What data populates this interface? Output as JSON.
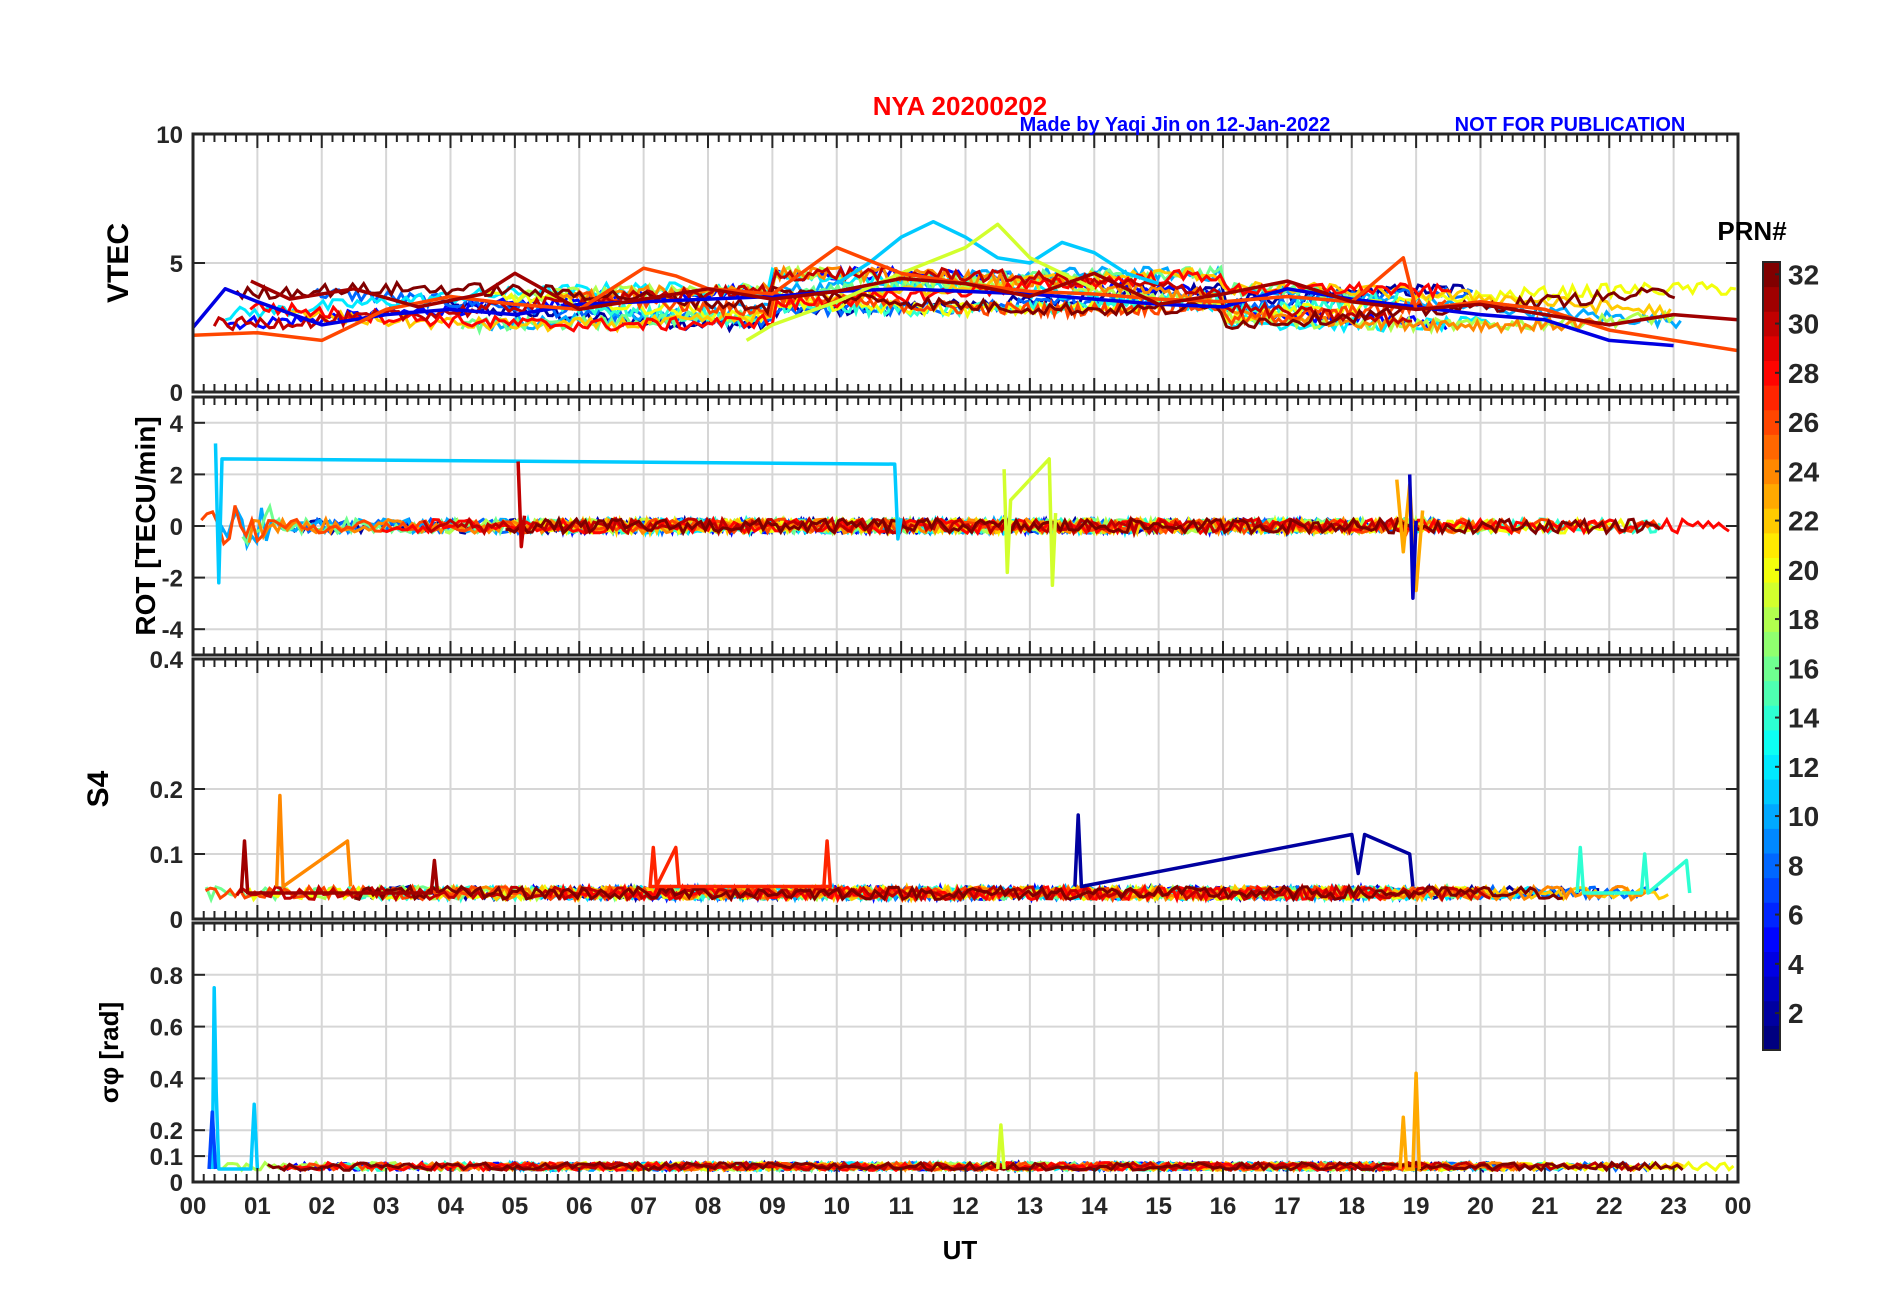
{
  "header": {
    "title": "NYA   20200202",
    "credit": "Made by Yaqi Jin on 12-Jan-2022",
    "notice": "NOT FOR PUBLICATION",
    "title_color": "#ff0000",
    "credit_color": "#0000ff"
  },
  "chart_data": [
    {
      "type": "line",
      "panel": "VTEC",
      "ylabel": "VTEC",
      "ylim": [
        0,
        10
      ],
      "yticks": [
        0,
        5,
        10
      ],
      "ytick_labels": [
        "0",
        "5",
        "10"
      ],
      "grid": true,
      "baseline": 3.3,
      "series": [
        {
          "prn": 4,
          "x": [
            0,
            0.5,
            1,
            2,
            3,
            4,
            5,
            6,
            7,
            8,
            9,
            10,
            11,
            12,
            13,
            14,
            15,
            16,
            17,
            18,
            19,
            20,
            21,
            22,
            23
          ],
          "y": [
            2.5,
            4.0,
            3.5,
            2.6,
            3.0,
            3.2,
            3.0,
            3.4,
            3.5,
            3.6,
            3.7,
            3.9,
            4.0,
            3.9,
            3.8,
            3.6,
            3.4,
            3.3,
            4.0,
            3.6,
            3.3,
            3.0,
            2.8,
            2.0,
            1.8
          ]
        },
        {
          "prn": 11,
          "x": [
            10,
            10.5,
            11,
            11.5,
            12,
            12.5,
            13,
            13.5,
            14,
            14.5,
            15
          ],
          "y": [
            4.2,
            5.0,
            6.0,
            6.6,
            6.0,
            5.2,
            5.0,
            5.8,
            5.4,
            4.6,
            4.2
          ]
        },
        {
          "prn": 19,
          "x": [
            8.6,
            9,
            10,
            11,
            12,
            12.5,
            13,
            14
          ],
          "y": [
            2.0,
            2.6,
            3.5,
            4.6,
            5.6,
            6.5,
            5.2,
            4.0
          ]
        },
        {
          "prn": 26,
          "x": [
            0,
            1,
            2,
            3,
            4,
            5,
            6,
            7,
            7.5,
            8,
            9,
            10,
            11,
            12,
            13,
            14,
            15,
            16,
            17,
            18,
            18.8,
            19,
            20,
            21,
            22,
            23,
            24
          ],
          "y": [
            2.2,
            2.3,
            2.0,
            3.2,
            3.7,
            3.4,
            3.2,
            4.8,
            4.5,
            4.0,
            3.8,
            5.6,
            4.6,
            4.2,
            3.9,
            3.8,
            3.6,
            3.5,
            3.7,
            3.5,
            5.2,
            3.2,
            3.5,
            3.2,
            2.4,
            2.0,
            1.6
          ]
        },
        {
          "prn": 31,
          "x": [
            0.9,
            1.5,
            2.5,
            3.5,
            4.5,
            5,
            6,
            7,
            8,
            9,
            10,
            11,
            12,
            13,
            14,
            15,
            16,
            17,
            18,
            19,
            20,
            21,
            22,
            23,
            24
          ],
          "y": [
            4.3,
            3.6,
            4.0,
            3.3,
            3.8,
            4.6,
            3.2,
            3.6,
            4.0,
            3.6,
            3.9,
            4.4,
            4.2,
            3.7,
            4.6,
            3.4,
            3.8,
            4.3,
            3.5,
            3.2,
            3.4,
            3.0,
            2.6,
            3.0,
            2.8
          ]
        }
      ]
    },
    {
      "type": "line",
      "panel": "ROT",
      "ylabel": "ROT [TECU/min]",
      "ylim": [
        -5,
        5
      ],
      "yticks": [
        -4,
        -2,
        0,
        2,
        4
      ],
      "ytick_labels": [
        "-4",
        "-2",
        "0",
        "2",
        "4"
      ],
      "grid": true,
      "baseline": 0,
      "series": [
        {
          "prn": 11,
          "x": [
            0.35,
            0.4,
            0.45,
            10.9,
            10.95,
            11.0
          ],
          "y": [
            3.2,
            -2.2,
            2.6,
            2.4,
            -0.5,
            0.3
          ]
        },
        {
          "prn": 19,
          "x": [
            12.6,
            12.65,
            12.7,
            13.3,
            13.35,
            13.4
          ],
          "y": [
            2.2,
            -1.8,
            1.0,
            2.6,
            -2.3,
            0.5
          ]
        },
        {
          "prn": 23,
          "x": [
            18.7,
            18.8,
            18.9,
            19.0,
            19.1
          ],
          "y": [
            1.8,
            -1.0,
            1.6,
            -2.5,
            0.6
          ]
        },
        {
          "prn": 30,
          "x": [
            5.05,
            5.1,
            5.15
          ],
          "y": [
            2.5,
            -0.8,
            0.4
          ]
        },
        {
          "prn": 3,
          "x": [
            18.9,
            18.95,
            19.0
          ],
          "y": [
            2.0,
            -2.8,
            0.2
          ]
        }
      ]
    },
    {
      "type": "line",
      "panel": "S4",
      "ylabel": "S4",
      "ylim": [
        0,
        0.4
      ],
      "yticks": [
        0,
        0.1,
        0.2,
        0.4
      ],
      "ytick_labels": [
        "0",
        "0.1",
        "0.2",
        "0.4"
      ],
      "grid": true,
      "baseline": 0.04,
      "series": [
        {
          "prn": 24,
          "x": [
            1.3,
            1.35,
            1.4,
            2.4,
            2.45
          ],
          "y": [
            0.05,
            0.19,
            0.05,
            0.12,
            0.05
          ]
        },
        {
          "prn": 2,
          "x": [
            13.7,
            13.75,
            13.8,
            18.0,
            18.1,
            18.2,
            18.9,
            18.95
          ],
          "y": [
            0.05,
            0.16,
            0.05,
            0.13,
            0.07,
            0.13,
            0.1,
            0.05
          ]
        },
        {
          "prn": 27,
          "x": [
            9.8,
            9.85,
            9.9,
            7.1,
            7.15,
            7.2,
            7.5,
            7.55
          ],
          "y": [
            0.05,
            0.12,
            0.05,
            0.05,
            0.11,
            0.05,
            0.11,
            0.05
          ]
        },
        {
          "prn": 31,
          "x": [
            0.75,
            0.8,
            0.85,
            3.7,
            3.75,
            3.8
          ],
          "y": [
            0.04,
            0.12,
            0.04,
            0.04,
            0.09,
            0.04
          ]
        },
        {
          "prn": 14,
          "x": [
            21.5,
            21.55,
            21.6,
            22.5,
            22.55,
            22.6,
            23.2,
            23.25
          ],
          "y": [
            0.04,
            0.11,
            0.04,
            0.04,
            0.1,
            0.04,
            0.09,
            0.04
          ]
        }
      ]
    },
    {
      "type": "line",
      "panel": "sigma_phi",
      "ylabel": "σφ [rad]",
      "ylim": [
        0,
        1
      ],
      "yticks": [
        0,
        0.1,
        0.2,
        0.4,
        0.6,
        0.8
      ],
      "ytick_labels": [
        "0",
        "0.1",
        "0.2",
        "0.4",
        "0.6",
        "0.8"
      ],
      "grid": true,
      "baseline": 0.06,
      "series": [
        {
          "prn": 11,
          "x": [
            0.3,
            0.33,
            0.36,
            0.4,
            0.9,
            0.95,
            1.0
          ],
          "y": [
            0.05,
            0.75,
            0.35,
            0.05,
            0.05,
            0.3,
            0.05
          ]
        },
        {
          "prn": 23,
          "x": [
            18.75,
            18.8,
            18.85,
            18.95,
            19.0,
            19.05
          ],
          "y": [
            0.05,
            0.25,
            0.05,
            0.05,
            0.42,
            0.05
          ]
        },
        {
          "prn": 19,
          "x": [
            12.5,
            12.55,
            12.6
          ],
          "y": [
            0.05,
            0.22,
            0.05
          ]
        },
        {
          "prn": 7,
          "x": [
            0.25,
            0.3,
            0.35
          ],
          "y": [
            0.05,
            0.27,
            0.05
          ]
        }
      ]
    }
  ],
  "x_axis": {
    "label": "UT",
    "range": [
      0,
      24
    ],
    "tick_labels": [
      "00",
      "01",
      "02",
      "03",
      "04",
      "05",
      "06",
      "07",
      "08",
      "09",
      "10",
      "11",
      "12",
      "13",
      "14",
      "15",
      "16",
      "17",
      "18",
      "19",
      "20",
      "21",
      "22",
      "23",
      "00"
    ]
  },
  "colorbar": {
    "title": "PRN#",
    "range": [
      1,
      32
    ],
    "colormap": "jet",
    "tick_labels": [
      "2",
      "4",
      "6",
      "8",
      "10",
      "12",
      "14",
      "16",
      "18",
      "20",
      "22",
      "24",
      "26",
      "28",
      "30",
      "32"
    ]
  }
}
